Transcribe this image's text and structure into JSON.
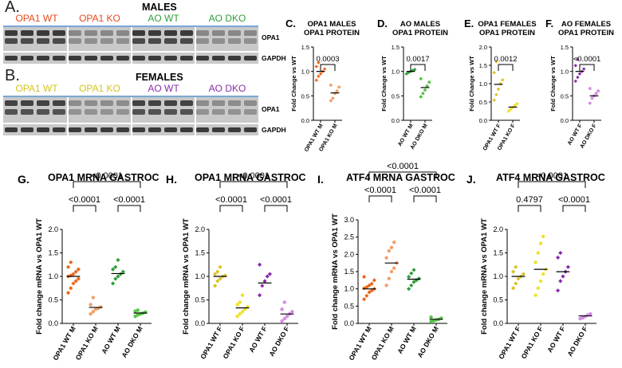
{
  "figure": {
    "panelA": {
      "letter": "A.",
      "sex": "MALES",
      "groups": [
        "OPA1 WT",
        "OPA1 KO",
        "AO WT",
        "AO DKO"
      ],
      "group_colors": [
        "#e8481c",
        "#e8481c",
        "#2e9e3a",
        "#2e9e3a"
      ],
      "proteins": [
        "OPA1",
        "GAPDH"
      ]
    },
    "panelB": {
      "letter": "B.",
      "sex": "FEMALES",
      "groups": [
        "OPA1 WT",
        "OPA1 KO",
        "AO WT",
        "AO DKO"
      ],
      "group_colors": [
        "#d4c41a",
        "#d4c41a",
        "#8a2ba8",
        "#8a2ba8"
      ],
      "proteins": [
        "OPA1",
        "GAPDH"
      ]
    }
  },
  "chart_data": [
    {
      "id": "C",
      "type": "scatter",
      "letter": "C.",
      "title": [
        "OPA1 MALES",
        "OPA1 PROTEIN"
      ],
      "ylabel": "Fold Change vs WT",
      "ylim": [
        0,
        1.5
      ],
      "yticks": [
        "0.0",
        "0.5",
        "1.0",
        "1.5"
      ],
      "categories": [
        "OPA1 WT M",
        "OPA1 KO M"
      ],
      "colors": [
        "#e8661c",
        "#f2a06a"
      ],
      "points": [
        [
          0.82,
          0.9,
          0.95,
          1.0,
          1.05,
          1.1,
          1.18
        ],
        [
          0.4,
          0.45,
          0.55,
          0.6,
          0.68,
          0.72
        ]
      ],
      "means": [
        1.0,
        0.56
      ],
      "comparisons": [
        {
          "from": 0,
          "to": 1,
          "label": "0.0003"
        }
      ]
    },
    {
      "id": "D",
      "type": "scatter",
      "letter": "D.",
      "title": [
        "AO MALES",
        "OPA1 PROTEIN"
      ],
      "ylabel": "Fold Change vs WT",
      "ylim": [
        0,
        1.5
      ],
      "yticks": [
        "0.0",
        "0.5",
        "1.0",
        "1.5"
      ],
      "categories": [
        "AO WT M",
        "AO DKO M"
      ],
      "colors": [
        "#2e9e3a",
        "#57c447"
      ],
      "points": [
        [
          0.95,
          0.98,
          1.0,
          1.02,
          1.04
        ],
        [
          0.48,
          0.55,
          0.62,
          0.7,
          0.78,
          0.85
        ]
      ],
      "means": [
        1.0,
        0.67
      ],
      "comparisons": [
        {
          "from": 0,
          "to": 1,
          "label": "0.0017"
        }
      ]
    },
    {
      "id": "E",
      "type": "scatter",
      "letter": "E.",
      "title": [
        "OPA1 FEMALES",
        "OPA1 PROTEIN"
      ],
      "ylabel": "Fold Change vs WT",
      "ylim": [
        0,
        2.0
      ],
      "yticks": [
        "0.0",
        "0.5",
        "1.0",
        "1.5",
        "2.0"
      ],
      "categories": [
        "OPA1 WT F",
        "OPA1 KO F"
      ],
      "colors": [
        "#d9c21e",
        "#f0e22a"
      ],
      "points": [
        [
          0.55,
          0.7,
          0.85,
          1.0,
          1.1,
          1.3,
          1.6
        ],
        [
          0.25,
          0.3,
          0.35,
          0.4,
          0.45
        ]
      ],
      "means": [
        0.98,
        0.36
      ],
      "comparisons": [
        {
          "from": 0,
          "to": 1,
          "label": "0.0012"
        }
      ]
    },
    {
      "id": "F",
      "type": "scatter",
      "letter": "F.",
      "title": [
        "AO FEMALES",
        "OPA1 PROTEIN"
      ],
      "ylabel": "Fold Change vs WT",
      "ylim": [
        0,
        1.5
      ],
      "yticks": [
        "0.0",
        "0.5",
        "1.0",
        "1.5"
      ],
      "categories": [
        "AO WT F",
        "AO DKO F"
      ],
      "colors": [
        "#8a2ba8",
        "#d58ae6"
      ],
      "points": [
        [
          0.8,
          0.88,
          0.95,
          1.0,
          1.05,
          1.12,
          1.25
        ],
        [
          0.35,
          0.45,
          0.5,
          0.55,
          0.6,
          0.65
        ]
      ],
      "means": [
        1.0,
        0.5
      ],
      "comparisons": [
        {
          "from": 0,
          "to": 1,
          "label": "<0.0001"
        }
      ]
    },
    {
      "id": "G",
      "type": "scatter",
      "letter": "G.",
      "title": [
        "OPA1 MRNA GASTROC"
      ],
      "ylabel": "Fold change mRNA vs OPA1 WT",
      "ylim": [
        0,
        2.0
      ],
      "yticks": [
        "0.0",
        "0.5",
        "1.0",
        "1.5",
        "2.0"
      ],
      "categories": [
        "OPA1 WT M",
        "OPA1 KO M",
        "AO WT M",
        "AO DKO M"
      ],
      "colors": [
        "#e8661c",
        "#f2a06a",
        "#2e9e3a",
        "#57c447"
      ],
      "points": [
        [
          0.65,
          0.75,
          0.85,
          0.9,
          0.95,
          1.0,
          1.02,
          1.05,
          1.1,
          1.15,
          1.2,
          1.3
        ],
        [
          0.2,
          0.25,
          0.3,
          0.32,
          0.35,
          0.4,
          0.55
        ],
        [
          0.85,
          0.95,
          1.0,
          1.05,
          1.1,
          1.15,
          1.2,
          1.35
        ],
        [
          0.15,
          0.18,
          0.2,
          0.22,
          0.24,
          0.26,
          0.28
        ]
      ],
      "means": [
        1.0,
        0.34,
        1.06,
        0.22
      ],
      "comparisons": [
        {
          "from": 0,
          "to": 1,
          "label": "<0.0001"
        },
        {
          "from": 2,
          "to": 3,
          "label": "<0.0001"
        },
        {
          "from": 0,
          "to": 3,
          "label": "<0.0001"
        }
      ]
    },
    {
      "id": "H",
      "type": "scatter",
      "letter": "H.",
      "title": [
        "OPA1 MRNA GASTROC"
      ],
      "ylabel": "Fold change mRNA vs OPA1 WT",
      "ylim": [
        0,
        2.0
      ],
      "yticks": [
        "0.0",
        "0.5",
        "1.0",
        "1.5",
        "2.0"
      ],
      "categories": [
        "OPA1 WT F",
        "OPA1 KO F",
        "AO WT F",
        "AO DKO F"
      ],
      "colors": [
        "#d9c21e",
        "#f0e22a",
        "#8a2ba8",
        "#d58ae6"
      ],
      "points": [
        [
          0.8,
          0.9,
          0.95,
          1.0,
          1.02,
          1.05,
          1.1,
          1.2
        ],
        [
          0.15,
          0.2,
          0.25,
          0.3,
          0.35,
          0.4,
          0.45,
          0.6
        ],
        [
          0.6,
          0.8,
          0.9,
          1.0,
          1.05,
          1.25
        ],
        [
          0.05,
          0.1,
          0.15,
          0.2,
          0.25,
          0.3,
          0.45
        ]
      ],
      "means": [
        1.0,
        0.33,
        0.86,
        0.2
      ],
      "comparisons": [
        {
          "from": 0,
          "to": 1,
          "label": "<0.0001"
        },
        {
          "from": 2,
          "to": 3,
          "label": "<0.0001"
        },
        {
          "from": 0,
          "to": 3,
          "label": "<0.0001"
        }
      ]
    },
    {
      "id": "I",
      "type": "scatter",
      "letter": "I.",
      "title": [
        "ATF4 MRNA GASTROC"
      ],
      "ylabel": "Fold change mRNA vs OPA1 WT",
      "ylim": [
        0,
        3.0
      ],
      "yticks": [
        "0.0",
        "0.5",
        "1.0",
        "1.5",
        "2.0",
        "2.5",
        "3.0"
      ],
      "categories": [
        "OPA1 WT M",
        "OPA1 KO M",
        "AO WT M",
        "AO DKO M"
      ],
      "colors": [
        "#e8661c",
        "#f2a06a",
        "#2e9e3a",
        "#57c447"
      ],
      "points": [
        [
          0.7,
          0.8,
          0.9,
          0.95,
          1.0,
          1.02,
          1.05,
          1.1,
          1.15,
          1.25,
          1.35
        ],
        [
          1.1,
          1.3,
          1.5,
          1.6,
          1.75,
          1.9,
          2.1,
          2.2,
          2.35
        ],
        [
          1.0,
          1.1,
          1.2,
          1.25,
          1.3,
          1.35,
          1.45,
          1.55
        ],
        [
          0.05,
          0.08,
          0.1,
          0.12,
          0.15,
          0.18
        ]
      ],
      "means": [
        1.0,
        1.75,
        1.28,
        0.12
      ],
      "comparisons": [
        {
          "from": 0,
          "to": 1,
          "label": "<0.0001"
        },
        {
          "from": 2,
          "to": 3,
          "label": "<0.0001"
        },
        {
          "from": 0,
          "to": 3,
          "label": "<0.0001"
        }
      ]
    },
    {
      "id": "J",
      "type": "scatter",
      "letter": "J.",
      "title": [
        "ATF4 MRNA GASTROC"
      ],
      "ylabel": "Fold change mRNA vs OPA1 WT",
      "ylim": [
        0,
        2.0
      ],
      "yticks": [
        "0.0",
        "0.5",
        "1.0",
        "1.5",
        "2.0"
      ],
      "categories": [
        "OPA1 WT F",
        "OPA1 KO F",
        "AO WT F",
        "AO DKO F"
      ],
      "colors": [
        "#d9c21e",
        "#f0e22a",
        "#8a2ba8",
        "#d58ae6"
      ],
      "points": [
        [
          0.75,
          0.85,
          0.95,
          1.0,
          1.05,
          1.1,
          1.2
        ],
        [
          0.6,
          0.75,
          0.9,
          1.05,
          1.15,
          1.3,
          1.5,
          1.7,
          1.85
        ],
        [
          0.7,
          0.9,
          1.0,
          1.1,
          1.2,
          1.4,
          1.5
        ],
        [
          0.1,
          0.12,
          0.15,
          0.18,
          0.2
        ]
      ],
      "means": [
        1.0,
        1.15,
        1.1,
        0.16
      ],
      "comparisons": [
        {
          "from": 0,
          "to": 1,
          "label": "0.4797"
        },
        {
          "from": 2,
          "to": 3,
          "label": "<0.0001"
        },
        {
          "from": 0,
          "to": 3,
          "label": "<0.0001"
        }
      ]
    }
  ]
}
